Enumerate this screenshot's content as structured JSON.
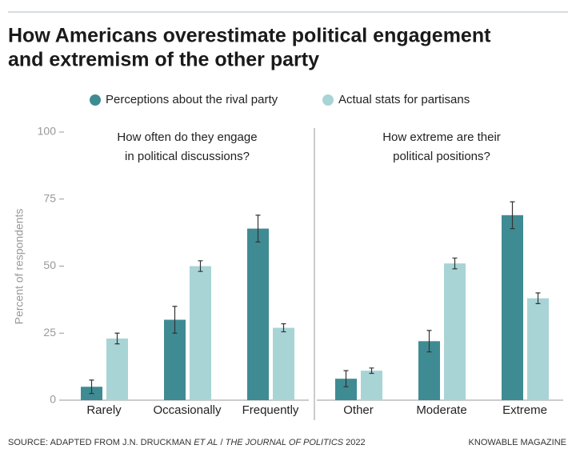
{
  "title": [
    "How Americans overestimate political engagement",
    "and extremism of the other party"
  ],
  "source": [
    "SOURCE: ADAPTED FROM J.N. DRUCKMAN ",
    "ET AL",
    " / ",
    "THE JOURNAL OF POLITICS",
    " 2022"
  ],
  "credit": "KNOWABLE MAGAZINE",
  "chart_data": [
    {
      "type": "bar",
      "title": [
        "How often do they engage",
        "in political discussions?"
      ],
      "ylabel": "Percent of respondents",
      "categories": [
        "Rarely",
        "Occasionally",
        "Frequently"
      ],
      "series": [
        {
          "name": "Perceptions about the rival party",
          "color": "#3f8b93",
          "values": [
            5,
            30,
            64
          ],
          "errors": [
            2.5,
            5,
            5
          ]
        },
        {
          "name": "Actual stats for partisans",
          "color": "#a8d4d6",
          "values": [
            23,
            50,
            27
          ],
          "errors": [
            2,
            2,
            1.5
          ]
        }
      ],
      "ylim": [
        0,
        100
      ],
      "yticks": [
        0,
        25,
        50,
        75,
        100
      ]
    },
    {
      "type": "bar",
      "title": [
        "How extreme are their",
        "political positions?"
      ],
      "categories": [
        "Other",
        "Moderate",
        "Extreme"
      ],
      "series": [
        {
          "name": "Perceptions about the rival party",
          "color": "#3f8b93",
          "values": [
            8,
            22,
            69
          ],
          "errors": [
            3,
            4,
            5
          ]
        },
        {
          "name": "Actual stats for partisans",
          "color": "#a8d4d6",
          "values": [
            11,
            51,
            38
          ],
          "errors": [
            1,
            2,
            2
          ]
        }
      ],
      "ylim": [
        0,
        100
      ]
    }
  ]
}
